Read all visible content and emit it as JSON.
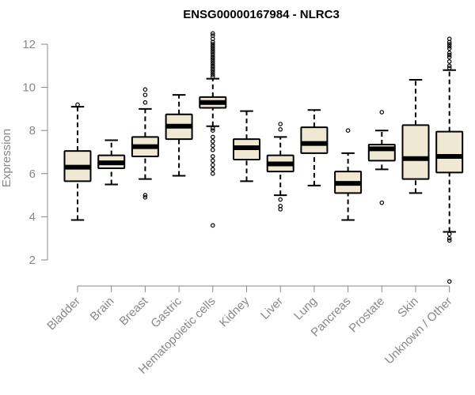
{
  "chart_data": {
    "type": "box",
    "title": "ENSG00000167984 - NLRC3",
    "xlabel": "",
    "ylabel": "Expression",
    "ylim": [
      0.8,
      12.6
    ],
    "yticks": [
      2,
      4,
      6,
      8,
      10,
      12
    ],
    "box_fill": "#efe9d4",
    "box_stroke": "#000000",
    "axis_color": "#888888",
    "grid": false,
    "categories": [
      "Bladder",
      "Brain",
      "Breast",
      "Gastric",
      "Hematopoietic cells",
      "Kidney",
      "Liver",
      "Lung",
      "Pancreas",
      "Prostate",
      "Skin",
      "Unknown / Other"
    ],
    "boxes": [
      {
        "name": "Bladder",
        "whisker_low": 3.85,
        "q1": 5.65,
        "median": 6.3,
        "q3": 7.05,
        "whisker_high": 9.1,
        "outliers": [
          9.2
        ]
      },
      {
        "name": "Brain",
        "whisker_low": 5.5,
        "q1": 6.25,
        "median": 6.5,
        "q3": 6.85,
        "whisker_high": 7.55,
        "outliers": []
      },
      {
        "name": "Breast",
        "whisker_low": 5.75,
        "q1": 6.8,
        "median": 7.25,
        "q3": 7.7,
        "whisker_high": 9.0,
        "outliers": [
          4.9,
          5.0,
          9.3,
          9.65,
          9.9
        ]
      },
      {
        "name": "Gastric",
        "whisker_low": 5.9,
        "q1": 7.6,
        "median": 8.2,
        "q3": 8.75,
        "whisker_high": 9.65,
        "outliers": []
      },
      {
        "name": "Hematopoietic cells",
        "whisker_low": 8.2,
        "q1": 9.05,
        "median": 9.3,
        "q3": 9.55,
        "whisker_high": 10.4,
        "outliers": [
          3.6,
          6.0,
          6.2,
          6.4,
          6.6,
          6.8,
          7.1,
          7.3,
          7.5,
          7.7,
          8.0,
          8.1,
          10.5,
          10.6,
          10.7,
          10.8,
          10.9,
          11.0,
          11.1,
          11.2,
          11.3,
          11.4,
          11.5,
          11.6,
          11.7,
          11.8,
          11.9,
          12.0,
          12.1,
          12.25,
          12.4,
          12.5
        ]
      },
      {
        "name": "Kidney",
        "whisker_low": 5.65,
        "q1": 6.65,
        "median": 7.2,
        "q3": 7.6,
        "whisker_high": 8.9,
        "outliers": []
      },
      {
        "name": "Liver",
        "whisker_low": 5.0,
        "q1": 6.1,
        "median": 6.45,
        "q3": 6.85,
        "whisker_high": 7.7,
        "outliers": [
          4.35,
          4.5,
          4.8,
          8.05,
          8.3
        ]
      },
      {
        "name": "Lung",
        "whisker_low": 5.45,
        "q1": 6.95,
        "median": 7.4,
        "q3": 8.15,
        "whisker_high": 8.95,
        "outliers": []
      },
      {
        "name": "Pancreas",
        "whisker_low": 3.85,
        "q1": 5.1,
        "median": 5.55,
        "q3": 6.1,
        "whisker_high": 6.95,
        "outliers": [
          8.0
        ]
      },
      {
        "name": "Prostate",
        "whisker_low": 6.2,
        "q1": 6.6,
        "median": 7.15,
        "q3": 7.35,
        "whisker_high": 8.0,
        "outliers": [
          4.65,
          8.85
        ]
      },
      {
        "name": "Skin",
        "whisker_low": 5.1,
        "q1": 5.75,
        "median": 6.7,
        "q3": 8.25,
        "whisker_high": 10.35,
        "outliers": []
      },
      {
        "name": "Unknown / Other",
        "whisker_low": 3.3,
        "q1": 6.05,
        "median": 6.8,
        "q3": 7.95,
        "whisker_high": 10.8,
        "outliers": [
          1.0,
          2.9,
          3.0,
          3.2,
          10.9,
          11.0,
          11.2,
          11.4,
          11.5,
          11.6,
          11.8,
          11.9,
          12.0,
          12.1,
          12.25
        ]
      }
    ]
  }
}
